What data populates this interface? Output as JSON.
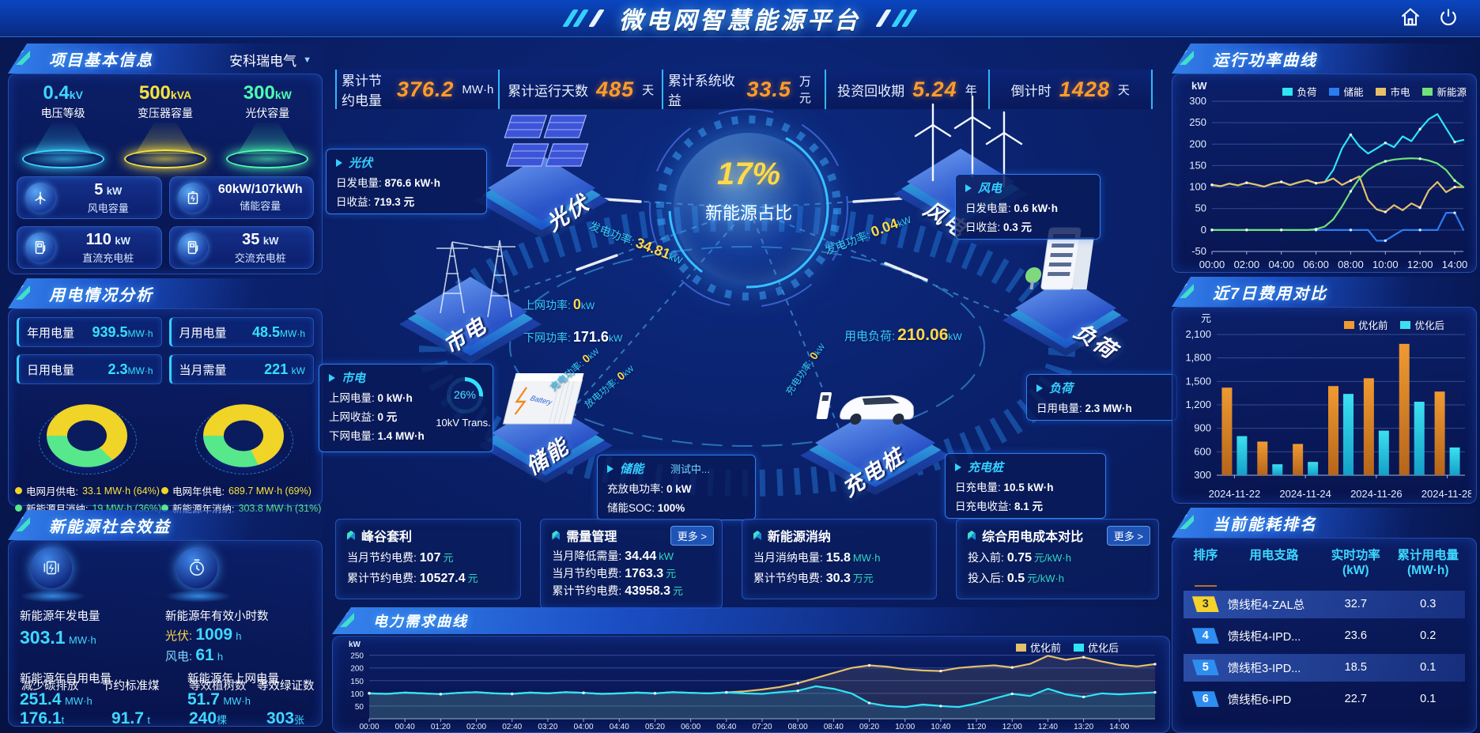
{
  "header": {
    "title": "微电网智慧能源平台",
    "icons": {
      "home": "home-icon",
      "power": "power-icon"
    }
  },
  "stats_bar": {
    "items": [
      {
        "label": "累计节约电量",
        "value": "376.2",
        "unit": "MW·h"
      },
      {
        "label": "累计运行天数",
        "value": "485",
        "unit": "天"
      },
      {
        "label": "累计系统收益",
        "value": "33.5",
        "unit": "万元"
      },
      {
        "label": "投资回收期",
        "value": "5.24",
        "unit": "年"
      },
      {
        "label": "倒计时",
        "value": "1428",
        "unit": "天"
      }
    ]
  },
  "left": {
    "project_info": {
      "title": "项目基本信息",
      "company": "安科瑞电气",
      "cones": [
        {
          "value": "0.4",
          "unit": "kV",
          "label": "电压等级",
          "color": "#3fd6ff"
        },
        {
          "value": "500",
          "unit": "kVA",
          "label": "变压器容量",
          "color": "#f7e33c"
        },
        {
          "value": "300",
          "unit": "kW",
          "label": "光伏容量",
          "color": "#4dffb0"
        }
      ],
      "cards": [
        {
          "value": "5",
          "unit": "kW",
          "label": "风电容量",
          "icon": "wind-turbine-icon"
        },
        {
          "value": "60kW/107kWh",
          "unit": "",
          "label": "储能容量",
          "icon": "battery-icon"
        },
        {
          "value": "110",
          "unit": "kW",
          "label": "直流充电桩",
          "icon": "dc-charger-icon"
        },
        {
          "value": "35",
          "unit": "kW",
          "label": "交流充电桩",
          "icon": "ac-charger-icon"
        }
      ]
    },
    "usage": {
      "title": "用电情况分析",
      "chips": [
        {
          "label": "年用电量",
          "value": "939.5",
          "unit": "MW·h"
        },
        {
          "label": "月用电量",
          "value": "48.5",
          "unit": "MW·h"
        },
        {
          "label": "日用电量",
          "value": "2.3",
          "unit": "MW·h"
        },
        {
          "label": "当月需量",
          "value": "221",
          "unit": "kW"
        }
      ],
      "donuts": [
        {
          "grid_pct": 64,
          "renew_pct": 36,
          "legend": [
            {
              "label": "电网月供电:",
              "value": "33.1 MW·h (64%)",
              "color": "#f0d428",
              "text_color": "#f7e33c"
            },
            {
              "label": "新能源月消纳:",
              "value": "19 MW·h (36%)",
              "color": "#57e88c",
              "text_color": "#57e88c"
            }
          ]
        },
        {
          "grid_pct": 69,
          "renew_pct": 31,
          "legend": [
            {
              "label": "电网年供电:",
              "value": "689.7 MW·h (69%)",
              "color": "#f0d428",
              "text_color": "#f7e33c"
            },
            {
              "label": "新能源年消纳:",
              "value": "303.8 MW·h (31%)",
              "color": "#57e88c",
              "text_color": "#57e88c"
            }
          ]
        }
      ]
    },
    "social": {
      "title": "新能源社会效益",
      "gen": {
        "label": "新能源年发电量",
        "value": "303.1",
        "unit": "MW·h",
        "icon": "generator-icon"
      },
      "hours": {
        "label": "新能源年有效小时数",
        "icon": "clock-icon",
        "pv_label": "光伏:",
        "pv_value": "1009",
        "pv_unit": "h",
        "wind_label": "风电:",
        "wind_value": "61",
        "wind_unit": "h"
      },
      "self_use": {
        "label": "新能源年自用电量",
        "value": "251.4",
        "unit": "MW·h"
      },
      "co2": {
        "label": "减少碳排放",
        "value": "176.1",
        "unit": "t"
      },
      "coal": {
        "label": "节约标准煤",
        "value": "91.7",
        "unit": "t"
      },
      "to_grid": {
        "label": "新能源年上网电量",
        "value": "51.7",
        "unit": "MW·h"
      },
      "trees": {
        "label": "等效植树数",
        "value": "240",
        "unit": "棵"
      },
      "certs": {
        "label": "等效绿证数",
        "value": "303",
        "unit": "张"
      }
    }
  },
  "center": {
    "gauge": {
      "pct": "17%",
      "label": "新能源占比"
    },
    "nodes": {
      "pv": "光伏",
      "wind": "风电",
      "grid": "市电",
      "storage": "储能",
      "load": "负荷",
      "charger": "充电桩"
    },
    "flows": {
      "pv_gen": {
        "label": "发电功率:",
        "value": "34.81",
        "unit": "kW"
      },
      "wind_gen": {
        "label": "发电功率:",
        "value": "0.04",
        "unit": "kW"
      },
      "grid_up": {
        "label": "上网功率:",
        "value": "0",
        "unit": "kW"
      },
      "grid_down": {
        "label": "下网功率:",
        "value": "171.6",
        "unit": "kW"
      },
      "load_demand": {
        "label": "用电负荷:",
        "value": "210.06",
        "unit": "kW"
      },
      "storage_charge": {
        "label": "充电功率:",
        "value": "0",
        "unit": "kW"
      },
      "storage_discharge": {
        "label": "放电功率:",
        "value": "0",
        "unit": "kW"
      },
      "charger_power": {
        "label": "充电功率:",
        "value": "0",
        "unit": "kW"
      }
    },
    "boxes": {
      "pv": {
        "title": "光伏",
        "r1l": "日发电量:",
        "r1v": "876.6 kW·h",
        "r2l": "日收益:",
        "r2v": "719.3 元"
      },
      "wind": {
        "title": "风电",
        "r1l": "日发电量:",
        "r1v": "0.6 kW·h",
        "r2l": "日收益:",
        "r2v": "0.3 元"
      },
      "grid": {
        "title": "市电",
        "r1l": "上网电量:",
        "r1v": "0 kW·h",
        "r2l": "上网收益:",
        "r2v": "0 元",
        "r3l": "下网电量:",
        "r3v": "1.4 MW·h",
        "gauge_pct": 26,
        "gauge_text": "26%",
        "gauge_label": "10kV Trans."
      },
      "storage": {
        "title": "储能",
        "badge": "测试中...",
        "r1l": "充放电功率:",
        "r1v": "0 kW",
        "r2l": "储能SOC:",
        "r2v": "100%"
      },
      "load": {
        "title": "负荷",
        "r1l": "日用电量:",
        "r1v": "2.3 MW·h"
      },
      "charger": {
        "title": "充电桩",
        "r1l": "日充电量:",
        "r1v": "10.5 kW·h",
        "r2l": "日充电收益:",
        "r2v": "8.1 元"
      }
    },
    "kpis": [
      {
        "title": "峰谷套利",
        "r1l": "当月节约电费:",
        "r1v": "107",
        "r1u": "元",
        "r2l": "累计节约电费:",
        "r2v": "10527.4",
        "r2u": "元"
      },
      {
        "title": "需量管理",
        "more": "更多 >",
        "r1l": "当月降低需量:",
        "r1v": "34.44",
        "r1u": "kW",
        "r2l": "当月节约电费:",
        "r2v": "1763.3",
        "r2u": "元",
        "r3l": "累计节约电费:",
        "r3v": "43958.3",
        "r3u": "元"
      },
      {
        "title": "新能源消纳",
        "r1l": "当月消纳电量:",
        "r1v": "15.8",
        "r1u": "MW·h",
        "r2l": "累计节约电费:",
        "r2v": "30.3",
        "r2u": "万元"
      },
      {
        "title": "综合用电成本对比",
        "more": "更多 >",
        "r1l": "投入前:",
        "r1v": "0.75",
        "r1u": "元/kW·h",
        "r2l": "投入后:",
        "r2v": "0.5",
        "r2u": "元/kW·h"
      }
    ]
  },
  "right": {
    "ranking": {
      "title": "当前能耗排名",
      "columns": [
        {
          "l1": "排序",
          "l2": ""
        },
        {
          "l1": "用电支路",
          "l2": ""
        },
        {
          "l1": "实时功率",
          "l2": "(kW)"
        },
        {
          "l1": "累计用电量",
          "l2": "(MW·h)"
        }
      ],
      "rows": [
        {
          "rank": "3",
          "branch": "馈线柜4-ZAL总",
          "power": "32.7",
          "energy": "0.3",
          "badge_color": "#f5d32c",
          "badge_text_color": "#333"
        },
        {
          "rank": "4",
          "branch": "馈线柜4-IPD...",
          "power": "23.6",
          "energy": "0.2",
          "badge_color": "#2e8df0",
          "badge_text_color": "#fff"
        },
        {
          "rank": "5",
          "branch": "馈线柜3-IPD...",
          "power": "18.5",
          "energy": "0.1",
          "badge_color": "#2e8df0",
          "badge_text_color": "#fff"
        },
        {
          "rank": "6",
          "branch": "馈线柜6-IPD",
          "power": "22.7",
          "energy": "0.1",
          "badge_color": "#2e8df0",
          "badge_text_color": "#fff"
        }
      ]
    }
  },
  "chart_data": [
    {
      "type": "line",
      "title": "运行功率曲线",
      "unit": "kW",
      "ylim": [
        -50,
        300
      ],
      "yticks": [
        -50,
        0,
        50,
        100,
        150,
        200,
        250,
        300
      ],
      "xticks": [
        {
          "i": 0,
          "label": "00:00"
        },
        {
          "i": 4,
          "label": "02:00"
        },
        {
          "i": 8,
          "label": "04:00"
        },
        {
          "i": 12,
          "label": "06:00"
        },
        {
          "i": 16,
          "label": "08:00"
        },
        {
          "i": 20,
          "label": "10:00"
        },
        {
          "i": 24,
          "label": "12:00"
        },
        {
          "i": 28,
          "label": "14:00"
        }
      ],
      "legend_position": "top",
      "series": [
        {
          "name": "负荷",
          "color": "#2ee5f5",
          "values": [
            105,
            102,
            108,
            104,
            110,
            106,
            101,
            108,
            112,
            105,
            111,
            116,
            109,
            112,
            140,
            190,
            222,
            195,
            178,
            190,
            203,
            193,
            218,
            207,
            235,
            258,
            270,
            237,
            205,
            210
          ]
        },
        {
          "name": "储能",
          "color": "#2a7df0",
          "values": [
            0,
            0,
            0,
            0,
            0,
            0,
            0,
            0,
            0,
            0,
            0,
            0,
            0,
            0,
            0,
            0,
            0,
            0,
            0,
            -25,
            -25,
            -12,
            0,
            0,
            0,
            0,
            0,
            40,
            40,
            0
          ]
        },
        {
          "name": "市电",
          "color": "#e6c06a",
          "values": [
            105,
            102,
            108,
            104,
            110,
            106,
            101,
            108,
            112,
            105,
            111,
            116,
            109,
            112,
            120,
            105,
            115,
            125,
            70,
            48,
            42,
            58,
            46,
            62,
            52,
            92,
            112,
            88,
            100,
            100
          ]
        },
        {
          "name": "新能源",
          "color": "#6fe37a",
          "values": [
            0,
            0,
            0,
            0,
            0,
            0,
            0,
            0,
            0,
            0,
            0,
            0,
            2,
            8,
            25,
            55,
            90,
            120,
            140,
            152,
            160,
            164,
            166,
            167,
            166,
            162,
            155,
            140,
            115,
            100
          ]
        }
      ]
    },
    {
      "type": "bar",
      "title": "近7日费用对比",
      "unit": "元",
      "categories": [
        "2024-11-22",
        "2024-11-23",
        "2024-11-24",
        "2024-11-25",
        "2024-11-26",
        "2024-11-27",
        "2024-11-28"
      ],
      "xtick_idx": [
        0,
        2,
        4,
        6
      ],
      "ylim": [
        300,
        2100
      ],
      "yticks": [
        {
          "v": 300,
          "label": "300"
        },
        {
          "v": 600,
          "label": "600"
        },
        {
          "v": 900,
          "label": "900"
        },
        {
          "v": 1200,
          "label": "1,200"
        },
        {
          "v": 1500,
          "label": "1,500"
        },
        {
          "v": 1800,
          "label": "1,800"
        },
        {
          "v": 2100,
          "label": "2,100"
        }
      ],
      "legend_position": "top",
      "series": [
        {
          "name": "优化前",
          "color": "#f09a32",
          "color2": "#b5651a",
          "values": [
            1420,
            730,
            700,
            1440,
            1540,
            1980,
            1370
          ]
        },
        {
          "name": "优化后",
          "color": "#3ce0f0",
          "color2": "#13a0c8",
          "values": [
            800,
            440,
            470,
            1340,
            870,
            1240,
            655
          ]
        }
      ]
    },
    {
      "type": "line",
      "title": "电力需求曲线",
      "unit": "kW",
      "ylim": [
        0,
        280
      ],
      "yticks": [
        50,
        100,
        150,
        200,
        250
      ],
      "xtick_labels": [
        "00:00",
        "00:40",
        "01:20",
        "02:00",
        "02:40",
        "03:20",
        "04:00",
        "04:40",
        "05:20",
        "06:00",
        "06:40",
        "07:20",
        "08:00",
        "08:40",
        "09:20",
        "10:00",
        "10:40",
        "11:20",
        "12:00",
        "12:40",
        "13:20",
        "14:00"
      ],
      "legend_position": "top-right",
      "area": true,
      "series": [
        {
          "name": "优化前",
          "color": "#e6c06a",
          "values": [
            100,
            98,
            103,
            100,
            97,
            102,
            105,
            100,
            98,
            103,
            100,
            105,
            102,
            98,
            100,
            103,
            100,
            105,
            102,
            100,
            104,
            108,
            115,
            125,
            140,
            160,
            180,
            200,
            210,
            205,
            195,
            190,
            188,
            200,
            206,
            210,
            202,
            216,
            248,
            232,
            242,
            226,
            212,
            206,
            215
          ]
        },
        {
          "name": "优化后",
          "color": "#2ee5f5",
          "values": [
            100,
            98,
            103,
            100,
            97,
            102,
            105,
            100,
            98,
            103,
            100,
            105,
            102,
            98,
            100,
            103,
            100,
            105,
            102,
            100,
            104,
            100,
            98,
            105,
            110,
            128,
            118,
            100,
            62,
            50,
            46,
            56,
            50,
            46,
            60,
            80,
            98,
            90,
            118,
            96,
            86,
            100,
            96,
            100,
            104
          ]
        }
      ]
    }
  ]
}
